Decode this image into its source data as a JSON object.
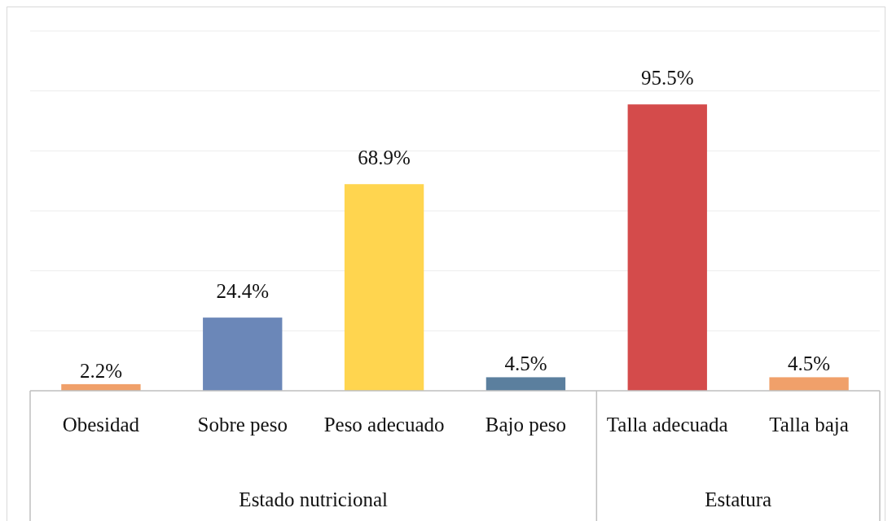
{
  "chart_data": {
    "type": "bar",
    "categories": [
      "Obesidad",
      "Sobre peso",
      "Peso adecuado",
      "Bajo peso",
      "Talla adecuada",
      "Talla baja"
    ],
    "values": [
      2.2,
      24.4,
      68.9,
      4.5,
      95.5,
      4.5
    ],
    "colors": [
      "#f0a06a",
      "#6b87b8",
      "#ffd54f",
      "#5b7f9e",
      "#d44b4b",
      "#f0a06a"
    ],
    "value_labels": [
      "2.2%",
      "24.4%",
      "68.9%",
      "4.5%",
      "95.5%",
      "4.5%"
    ],
    "annotations": [
      "Estado nutricional",
      "Estatura"
    ],
    "ylim": [
      0,
      120
    ],
    "yticks": [
      {
        "value": 0,
        "label": null
      },
      {
        "value": 20,
        "label": null
      },
      {
        "value": 40,
        "label": null
      },
      {
        "value": 60,
        "label": null
      },
      {
        "value": 80,
        "label": null
      },
      {
        "value": 100,
        "label": null
      },
      {
        "value": 120,
        "label": null
      }
    ],
    "grid": "y",
    "tick_labels": "x"
  }
}
